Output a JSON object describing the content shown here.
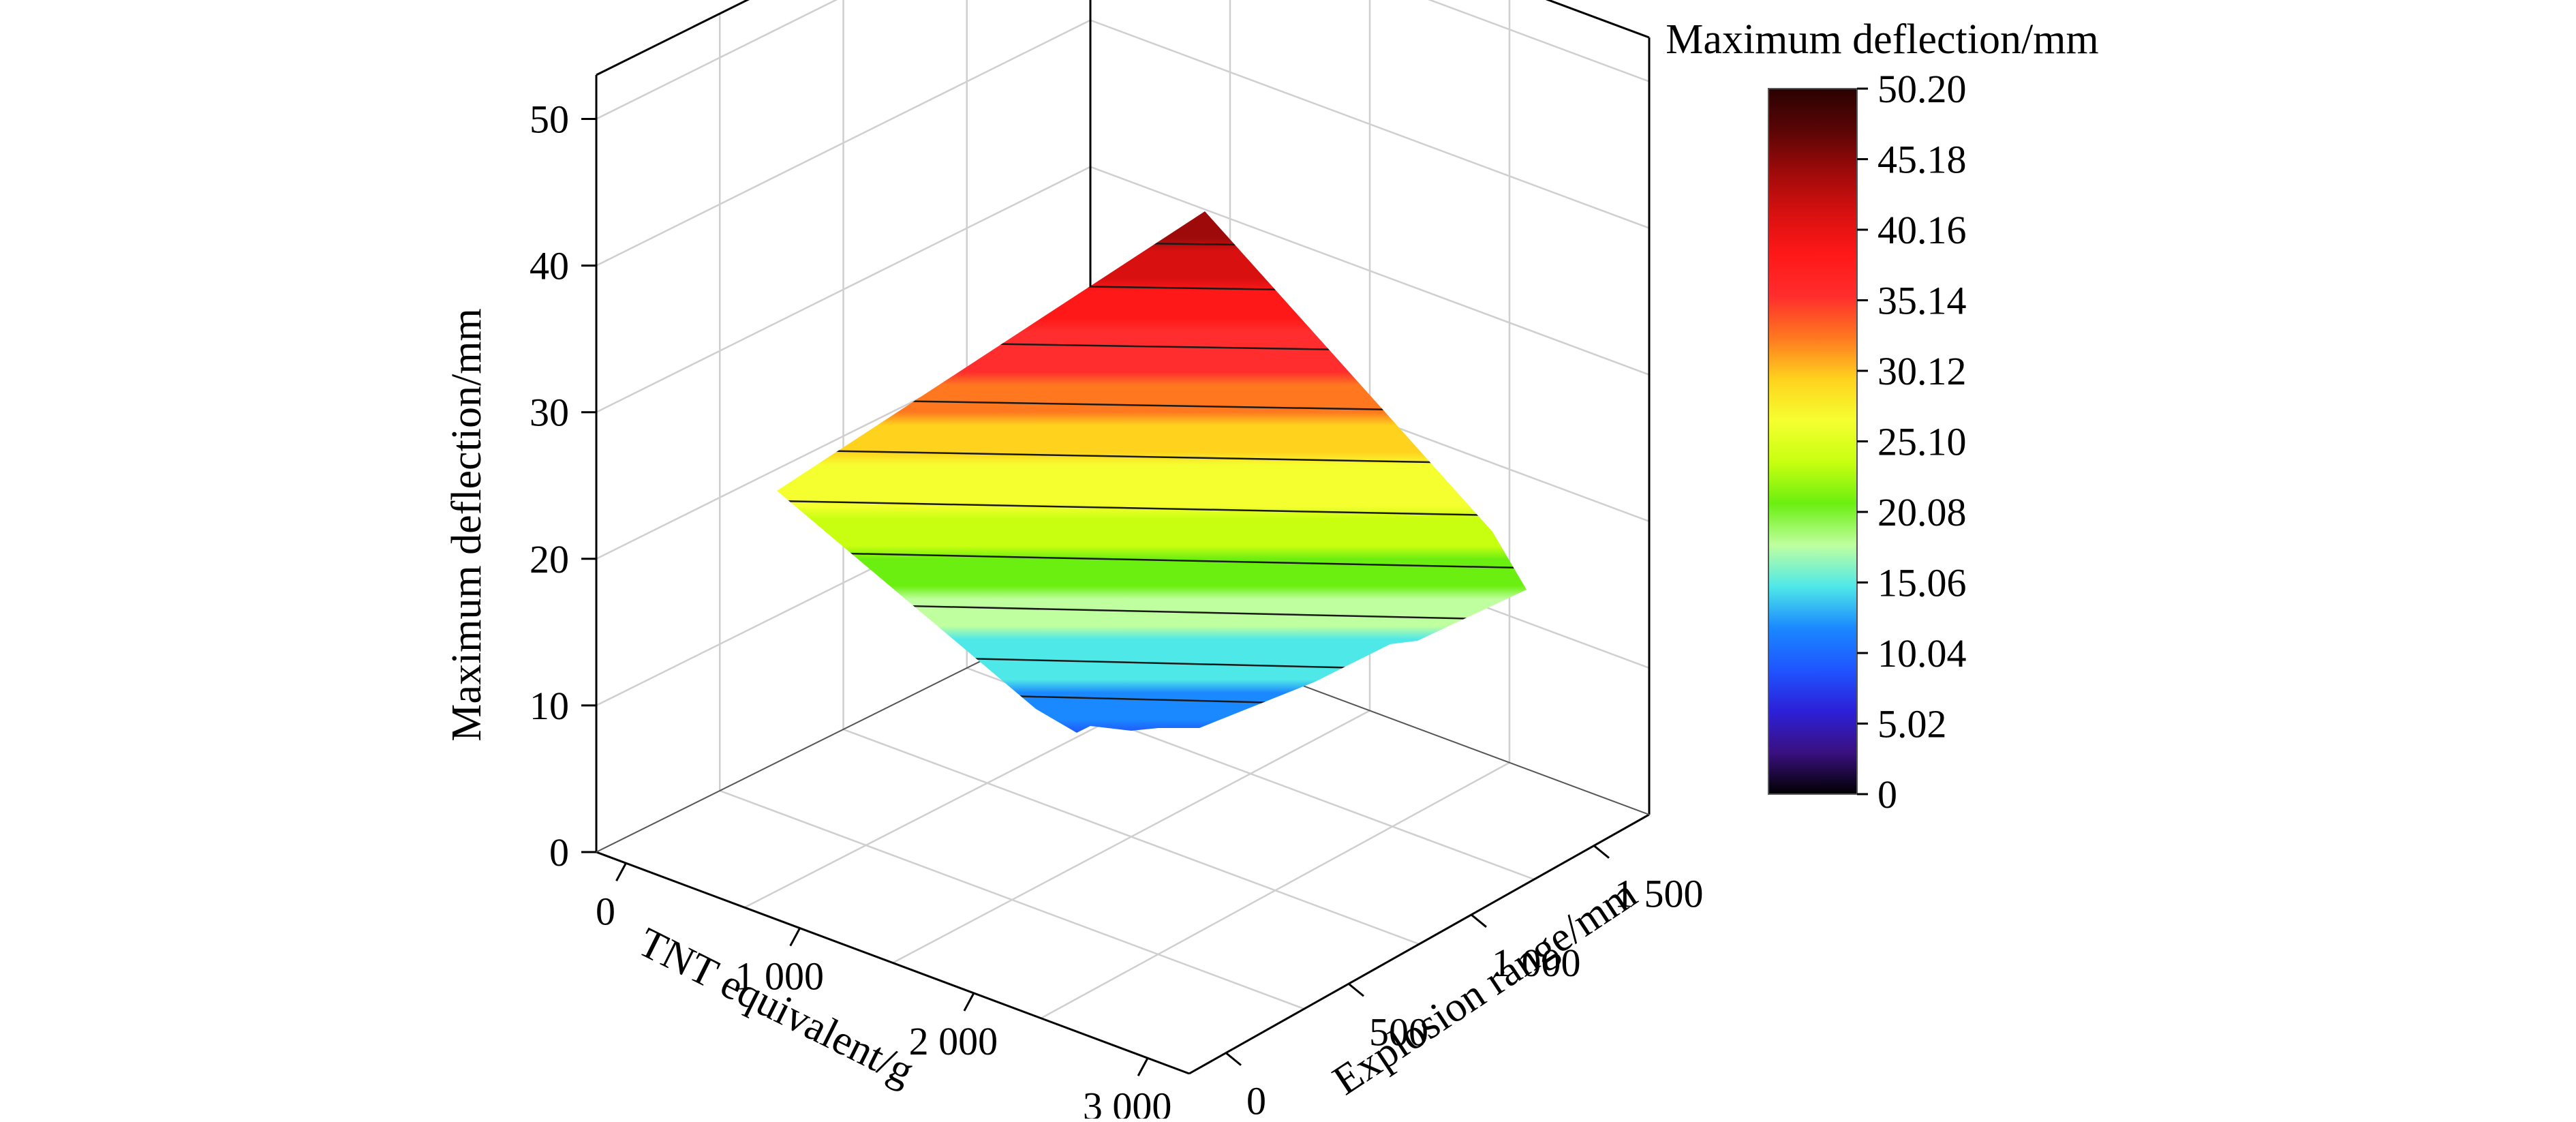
{
  "chart_data": {
    "type": "surface3d",
    "zlabel": "Maximum deflection/mm",
    "xlabel": "TNT equivalent/g",
    "ylabel": "Explosion range/mm",
    "x_ticks": [
      "0",
      "1 000",
      "2 000",
      "3 000"
    ],
    "y_ticks": [
      "0",
      "500",
      "1 000",
      "1 500"
    ],
    "z_ticks": [
      "0",
      "10",
      "20",
      "30",
      "40",
      "50"
    ],
    "zlim": [
      0,
      53
    ],
    "colorbar": {
      "title": "Maximum deflection/mm",
      "range": [
        0,
        50.2
      ],
      "tick_values": [
        0,
        5.02,
        10.04,
        15.06,
        20.08,
        25.1,
        30.12,
        35.14,
        40.16,
        45.18,
        50.2
      ],
      "tick_labels": [
        "0",
        "5.02",
        "10.04",
        "15.06",
        "20.08",
        "25.10",
        "30.12",
        "35.14",
        "40.16",
        "45.18",
        "50.20"
      ],
      "colors": [
        "#000000",
        "#3a1080",
        "#2c20d8",
        "#1f55ff",
        "#1a88ff",
        "#4fe8e8",
        "#bfffa0",
        "#6bef10",
        "#c8ff10",
        "#f5ff30",
        "#ffd21e",
        "#ff7820",
        "#ff2d2d",
        "#ff1818",
        "#d81010",
        "#9e0a0a",
        "#5a0505",
        "#2a0202"
      ]
    },
    "surface": {
      "description_corners": [
        {
          "position": "bottom",
          "z": 9
        },
        {
          "position": "left",
          "z": 26
        },
        {
          "position": "right",
          "z": 19
        },
        {
          "position": "top",
          "z": 45
        }
      ],
      "contour_levels": [
        12,
        14.5,
        18,
        21.5,
        25,
        28.5,
        32,
        36,
        40,
        43
      ]
    },
    "grid": true
  }
}
